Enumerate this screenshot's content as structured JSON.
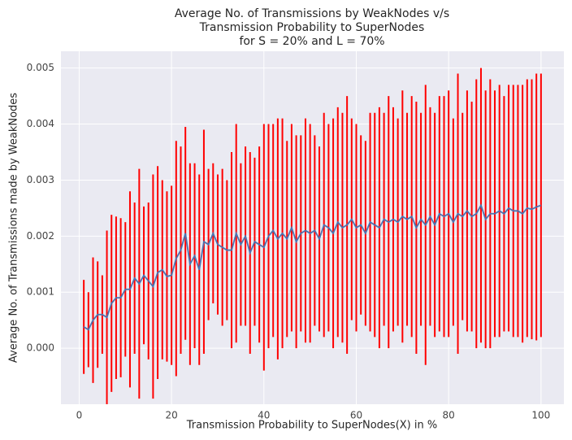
{
  "chart_data": {
    "type": "line",
    "title": [
      "Average No. of Transmissions by WeakNodes v/s",
      "Transmission Probability to SuperNodes",
      "for S = 20% and L = 70%"
    ],
    "xlabel": "Transmission Probability to SuperNodes(X) in %",
    "ylabel": "Average No. of Transmissions made by WeakNodes",
    "x": [
      1,
      2,
      3,
      4,
      5,
      6,
      7,
      8,
      9,
      10,
      11,
      12,
      13,
      14,
      15,
      16,
      17,
      18,
      19,
      20,
      21,
      22,
      23,
      24,
      25,
      26,
      27,
      28,
      29,
      30,
      31,
      32,
      33,
      34,
      35,
      36,
      37,
      38,
      39,
      40,
      41,
      42,
      43,
      44,
      45,
      46,
      47,
      48,
      49,
      50,
      51,
      52,
      53,
      54,
      55,
      56,
      57,
      58,
      59,
      60,
      61,
      62,
      63,
      64,
      65,
      66,
      67,
      68,
      69,
      70,
      71,
      72,
      73,
      74,
      75,
      76,
      77,
      78,
      79,
      80,
      81,
      82,
      83,
      84,
      85,
      86,
      87,
      88,
      89,
      90,
      91,
      92,
      93,
      94,
      95,
      96,
      97,
      98,
      99,
      100
    ],
    "series": [
      {
        "color": "#4c72b0",
        "error_color": "#ff0000",
        "values": [
          0.00038,
          0.00033,
          0.0005,
          0.0006,
          0.0006,
          0.00055,
          0.0008,
          0.0009,
          0.0009,
          0.00105,
          0.00105,
          0.00125,
          0.00115,
          0.0013,
          0.0012,
          0.0011,
          0.00135,
          0.0014,
          0.00128,
          0.0013,
          0.0016,
          0.00175,
          0.00205,
          0.0015,
          0.00165,
          0.0014,
          0.0019,
          0.00185,
          0.00205,
          0.00185,
          0.0018,
          0.00175,
          0.00175,
          0.00205,
          0.00185,
          0.002,
          0.0017,
          0.0019,
          0.00185,
          0.0018,
          0.002,
          0.0021,
          0.00195,
          0.00205,
          0.00195,
          0.00215,
          0.0019,
          0.00205,
          0.0021,
          0.00205,
          0.0021,
          0.00195,
          0.0022,
          0.00215,
          0.00205,
          0.00225,
          0.00215,
          0.0022,
          0.0023,
          0.00215,
          0.0022,
          0.00205,
          0.00225,
          0.0022,
          0.00215,
          0.0023,
          0.00225,
          0.0023,
          0.00225,
          0.00235,
          0.0023,
          0.00235,
          0.00215,
          0.0023,
          0.0022,
          0.00235,
          0.0022,
          0.0024,
          0.00235,
          0.0024,
          0.00225,
          0.0024,
          0.00235,
          0.00245,
          0.00235,
          0.0024,
          0.00255,
          0.0023,
          0.0024,
          0.0024,
          0.00245,
          0.0024,
          0.0025,
          0.00245,
          0.00245,
          0.0024,
          0.0025,
          0.00248,
          0.00252,
          0.00255
        ],
        "errors": [
          0.00084,
          0.00067,
          0.00112,
          0.00095,
          0.0007,
          0.00155,
          0.00158,
          0.00145,
          0.00142,
          0.0012,
          0.00175,
          0.00135,
          0.00205,
          0.00123,
          0.0014,
          0.002,
          0.0019,
          0.0016,
          0.00152,
          0.0016,
          0.0021,
          0.00185,
          0.0019,
          0.0018,
          0.00165,
          0.0017,
          0.002,
          0.00135,
          0.00125,
          0.00125,
          0.0014,
          0.00125,
          0.00175,
          0.00195,
          0.00145,
          0.0016,
          0.0018,
          0.0015,
          0.00175,
          0.0022,
          0.002,
          0.0019,
          0.00215,
          0.00205,
          0.00175,
          0.00185,
          0.0019,
          0.00175,
          0.002,
          0.00195,
          0.0017,
          0.00165,
          0.002,
          0.00185,
          0.00205,
          0.00205,
          0.00205,
          0.0023,
          0.0018,
          0.00185,
          0.0016,
          0.00165,
          0.00195,
          0.002,
          0.00215,
          0.0019,
          0.00225,
          0.002,
          0.00185,
          0.00225,
          0.0019,
          0.00215,
          0.00225,
          0.0019,
          0.0025,
          0.00195,
          0.002,
          0.0021,
          0.00215,
          0.0022,
          0.00185,
          0.0025,
          0.00185,
          0.00215,
          0.00205,
          0.0024,
          0.00245,
          0.0023,
          0.0024,
          0.0022,
          0.00225,
          0.0021,
          0.0022,
          0.00225,
          0.00225,
          0.0023,
          0.0023,
          0.00232,
          0.00238,
          0.00235
        ]
      }
    ],
    "xlim": [
      -3.95,
      104.95
    ],
    "ylim": [
      -0.001,
      0.0053
    ],
    "xticks": [
      0,
      20,
      40,
      60,
      80,
      100
    ],
    "yticks": [
      {
        "value": 0,
        "label": "0.000"
      },
      {
        "value": 0.001,
        "label": "0.001"
      },
      {
        "value": 0.002,
        "label": "0.002"
      },
      {
        "value": 0.003,
        "label": "0.003"
      },
      {
        "value": 0.004,
        "label": "0.004"
      },
      {
        "value": 0.005,
        "label": "0.005"
      }
    ],
    "grid": true
  }
}
